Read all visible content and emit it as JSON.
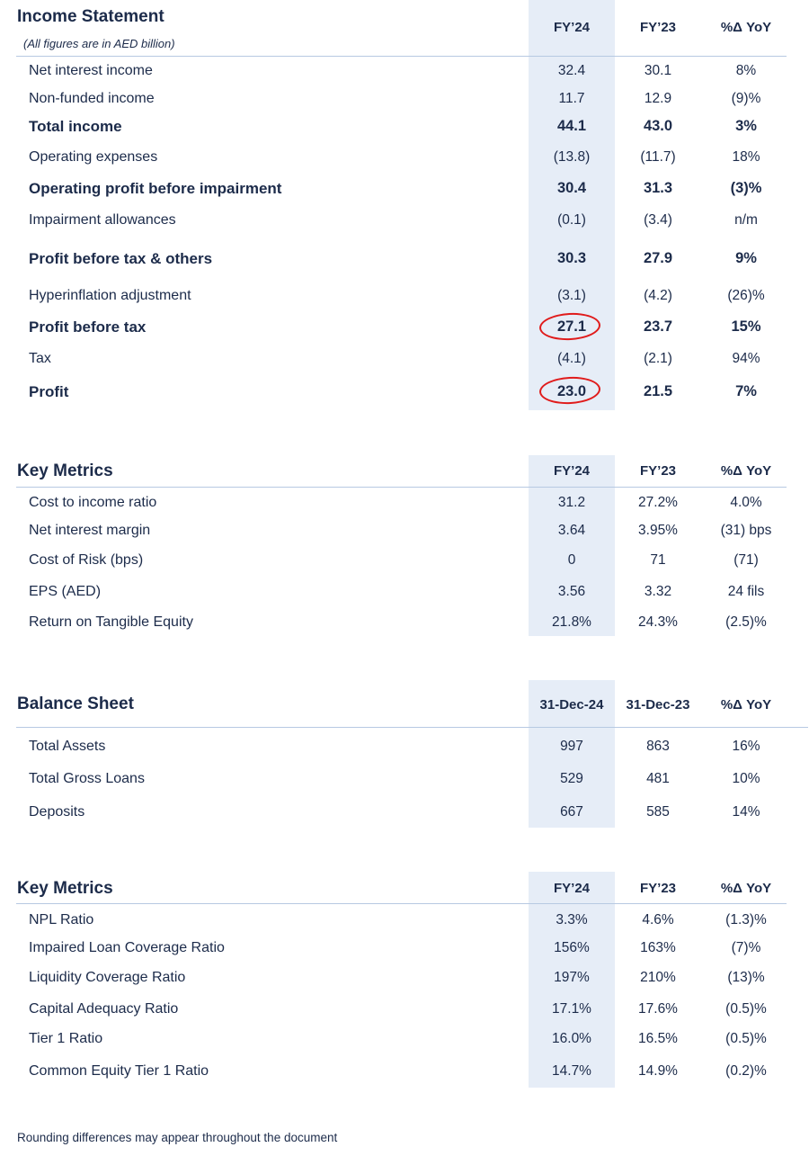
{
  "income": {
    "title": "Income Statement",
    "subtitle": "(All figures are in AED billion)",
    "headers": [
      "FY’24",
      "FY’23",
      "%Δ YoY"
    ],
    "rows": [
      {
        "label": "Net interest income",
        "v": [
          "32.4",
          "30.1",
          "8%"
        ],
        "bold": false
      },
      {
        "label": "Non-funded income",
        "v": [
          "11.7",
          "12.9",
          "(9)%"
        ],
        "bold": false
      },
      {
        "label": "Total income",
        "v": [
          "44.1",
          "43.0",
          "3%"
        ],
        "bold": true
      },
      {
        "label": "Operating expenses",
        "v": [
          "(13.8)",
          "(11.7)",
          "18%"
        ],
        "bold": false
      },
      {
        "label": "Operating profit before impairment",
        "v": [
          "30.4",
          "31.3",
          "(3)%"
        ],
        "bold": true
      },
      {
        "label": "Impairment allowances",
        "v": [
          "(0.1)",
          "(3.4)",
          "n/m"
        ],
        "bold": false
      },
      {
        "label": "Profit before tax & others",
        "v": [
          "30.3",
          "27.9",
          "9%"
        ],
        "bold": true
      },
      {
        "label": "Hyperinflation adjustment",
        "v": [
          "(3.1)",
          "(4.2)",
          "(26)%"
        ],
        "bold": false
      },
      {
        "label": "Profit before tax",
        "v": [
          "27.1",
          "23.7",
          "15%"
        ],
        "bold": true
      },
      {
        "label": "Tax",
        "v": [
          "(4.1)",
          "(2.1)",
          "94%"
        ],
        "bold": false
      },
      {
        "label": "Profit",
        "v": [
          "23.0",
          "21.5",
          "7%"
        ],
        "bold": true
      }
    ]
  },
  "metrics1": {
    "title": "Key Metrics",
    "headers": [
      "FY’24",
      "FY’23",
      "%Δ YoY"
    ],
    "rows": [
      {
        "label": "Cost to income ratio",
        "v": [
          "31.2",
          "27.2%",
          "4.0%"
        ]
      },
      {
        "label": "Net interest margin",
        "v": [
          "3.64",
          "3.95%",
          "(31) bps"
        ]
      },
      {
        "label": "Cost of Risk (bps)",
        "v": [
          "0",
          "71",
          "(71)"
        ]
      },
      {
        "label": "EPS (AED)",
        "v": [
          "3.56",
          "3.32",
          "24 fils"
        ]
      },
      {
        "label": "Return on Tangible Equity",
        "v": [
          "21.8%",
          "24.3%",
          "(2.5)%"
        ]
      }
    ]
  },
  "balance": {
    "title": "Balance Sheet",
    "headers": [
      "31-Dec-24",
      "31-Dec-23",
      "%Δ YoY"
    ],
    "rows": [
      {
        "label": "Total Assets",
        "v": [
          "997",
          "863",
          "16%"
        ]
      },
      {
        "label": "Total Gross Loans",
        "v": [
          "529",
          "481",
          "10%"
        ]
      },
      {
        "label": "Deposits",
        "v": [
          "667",
          "585",
          "14%"
        ]
      }
    ]
  },
  "metrics2": {
    "title": "Key Metrics",
    "headers": [
      "FY’24",
      "FY’23",
      "%Δ YoY"
    ],
    "rows": [
      {
        "label": "NPL Ratio",
        "v": [
          "3.3%",
          "4.6%",
          "(1.3)%"
        ]
      },
      {
        "label": "Impaired Loan Coverage Ratio",
        "v": [
          "156%",
          "163%",
          "(7)%"
        ]
      },
      {
        "label": "Liquidity Coverage Ratio",
        "v": [
          "197%",
          "210%",
          "(13)%"
        ]
      },
      {
        "label": "Capital Adequacy Ratio",
        "v": [
          "17.1%",
          "17.6%",
          "(0.5)%"
        ]
      },
      {
        "label": "Tier 1 Ratio",
        "v": [
          "16.0%",
          "16.5%",
          "(0.5)%"
        ]
      },
      {
        "label": "Common Equity Tier 1 Ratio",
        "v": [
          "14.7%",
          "14.9%",
          "(0.2)%"
        ]
      }
    ]
  },
  "footnote": "Rounding differences may appear throughout the document",
  "colors": {
    "text": "#1c2b4a",
    "highlight_band": "#e6edf7",
    "rule": "#b7c9e2",
    "annotation_circle": "#e01b1b"
  }
}
